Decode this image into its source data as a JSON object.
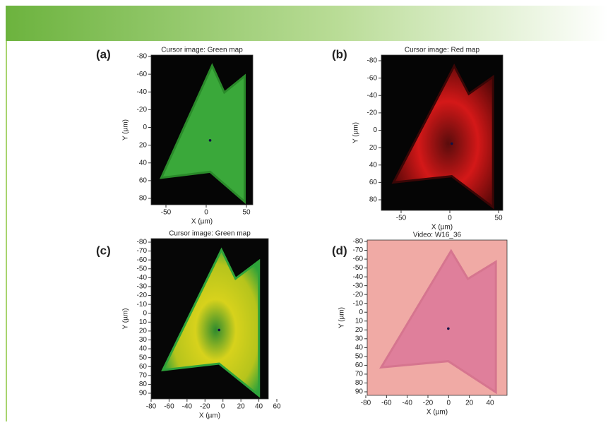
{
  "panels": [
    {
      "label": "(a)",
      "title": "Cursor image: Green map",
      "x_label": "X (µm)",
      "y_label": "Y (µm)",
      "xticks": [
        -50,
        0,
        50
      ],
      "yticks": [
        -80,
        -60,
        -40,
        -20,
        0,
        20,
        40,
        60,
        80
      ]
    },
    {
      "label": "(b)",
      "title": "Cursor image: Red map",
      "x_label": "X (µm)",
      "y_label": "Y (µm)",
      "xticks": [
        -50,
        0,
        50
      ],
      "yticks": [
        -80,
        -60,
        -40,
        -20,
        0,
        20,
        40,
        60,
        80
      ]
    },
    {
      "label": "(c)",
      "title": "Cursor image: Green map",
      "x_label": "X (µm)",
      "y_label": "Y (µm)",
      "xticks": [
        -80,
        -60,
        -40,
        -20,
        0,
        20,
        40,
        60
      ],
      "yticks": [
        -80,
        -70,
        -60,
        -50,
        -40,
        -30,
        -20,
        -10,
        0,
        10,
        20,
        30,
        40,
        50,
        60,
        70,
        80,
        90
      ]
    },
    {
      "label": "(d)",
      "title": "Video: W16_36",
      "x_label": "X (µm)",
      "y_label": "Y (µm)",
      "xticks": [
        -80,
        -60,
        -40,
        -20,
        0,
        20,
        40
      ],
      "yticks": [
        -80,
        -70,
        -60,
        -50,
        -40,
        -30,
        -20,
        -10,
        0,
        10,
        20,
        30,
        40,
        50,
        60,
        70,
        80,
        90
      ]
    }
  ]
}
